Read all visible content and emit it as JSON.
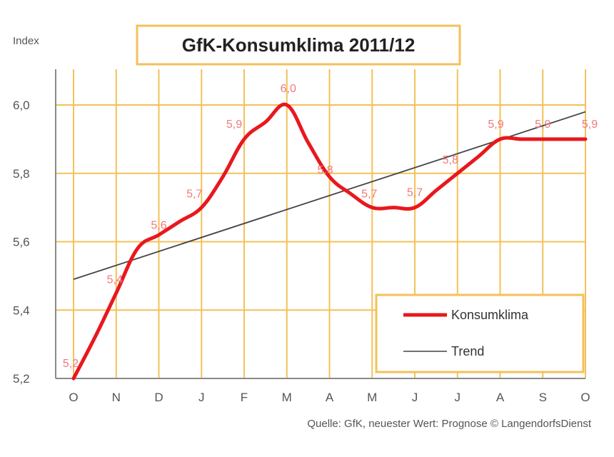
{
  "chart_data": {
    "type": "line",
    "title": "GfK-Konsumklima 2011/12",
    "ylabel": "Index",
    "xlabel": "",
    "categories": [
      "O",
      "N",
      "D",
      "J",
      "F",
      "M",
      "A",
      "M",
      "J",
      "J",
      "A",
      "S",
      "O"
    ],
    "ylim": [
      5.2,
      6.0
    ],
    "yticks": [
      5.2,
      5.4,
      5.6,
      5.8,
      6.0
    ],
    "ytick_labels": [
      "5,2",
      "5,4",
      "5,6",
      "5,8",
      "6,0"
    ],
    "grid": true,
    "legend_position": "bottom-right",
    "series": [
      {
        "name": "Konsumklima",
        "color": "#e8181e",
        "x": [
          0,
          0.5,
          1,
          1.5,
          2,
          2.5,
          3,
          3.5,
          4,
          4.5,
          5,
          5.5,
          6,
          6.5,
          7,
          7.5,
          8,
          8.5,
          9,
          9.5,
          10,
          10.5,
          11,
          11.5,
          12
        ],
        "values": [
          5.2,
          5.32,
          5.45,
          5.58,
          5.62,
          5.66,
          5.7,
          5.79,
          5.9,
          5.95,
          6.0,
          5.89,
          5.79,
          5.74,
          5.7,
          5.7,
          5.7,
          5.75,
          5.8,
          5.85,
          5.9,
          5.9,
          5.9,
          5.9,
          5.9
        ],
        "labels": [
          {
            "x": 0,
            "y": 5.2,
            "text": "5,2"
          },
          {
            "x": 1,
            "y": 5.45,
            "text": "5,4"
          },
          {
            "x": 2,
            "y": 5.6,
            "text": "5,6"
          },
          {
            "x": 3,
            "y": 5.7,
            "text": "5,7"
          },
          {
            "x": 4,
            "y": 5.9,
            "text": "5,9"
          },
          {
            "x": 5,
            "y": 6.0,
            "text": "6,0"
          },
          {
            "x": 5.7,
            "y": 5.8,
            "text": "5,8"
          },
          {
            "x": 7,
            "y": 5.7,
            "text": "5,7"
          },
          {
            "x": 8,
            "y": 5.7,
            "text": "5,7"
          },
          {
            "x": 9,
            "y": 5.8,
            "text": "5,8"
          },
          {
            "x": 10,
            "y": 5.9,
            "text": "5,9"
          },
          {
            "x": 11,
            "y": 5.9,
            "text": "5,9"
          },
          {
            "x": 12,
            "y": 5.9,
            "text": "5,9"
          }
        ]
      },
      {
        "name": "Trend",
        "color": "#444444",
        "x": [
          0,
          12
        ],
        "values": [
          5.49,
          5.98
        ]
      }
    ]
  },
  "source": "Quelle: GfK, neuester Wert: Prognose © LangendorfsDienst",
  "colors": {
    "grid": "#f3c15a",
    "axis": "#8a8a8a",
    "title_border": "#f3c15a",
    "legend_border": "#f3c15a"
  }
}
